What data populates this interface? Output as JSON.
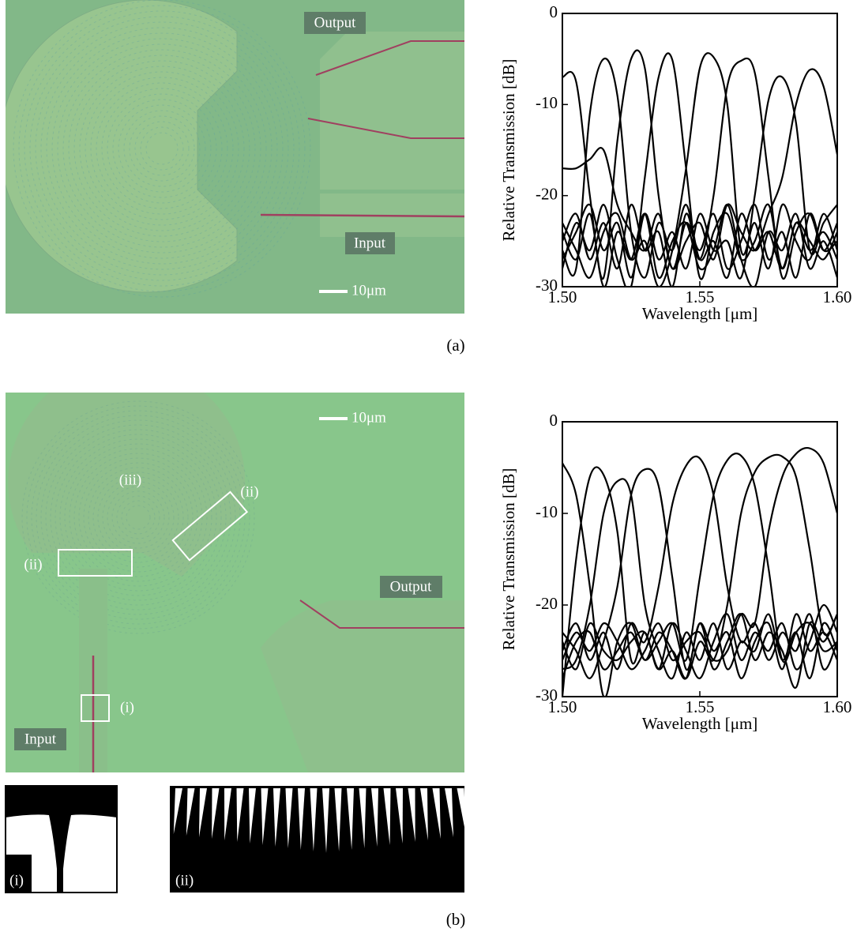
{
  "panel_a": {
    "caption": "(a)",
    "output_label": "Output",
    "input_label": "Input",
    "scale_bar": "10μm"
  },
  "panel_b": {
    "caption": "(b)",
    "output_label": "Output",
    "input_label": "Input",
    "scale_bar": "10μm",
    "region_labels": [
      "(iii)",
      "(ii)",
      "(ii)",
      "(i)"
    ],
    "inset_labels": [
      "(i)",
      "(ii)"
    ]
  },
  "chart_data": [
    {
      "type": "line",
      "xlabel": "Wavelength [μm]",
      "ylabel": "Relative Transmission [dB]",
      "x": [
        1.5,
        1.505,
        1.51,
        1.515,
        1.52,
        1.525,
        1.53,
        1.535,
        1.54,
        1.545,
        1.55,
        1.555,
        1.56,
        1.565,
        1.57,
        1.575,
        1.58,
        1.585,
        1.59,
        1.595,
        1.6
      ],
      "xlim": [
        1.5,
        1.6
      ],
      "ylim": [
        -30,
        0
      ],
      "xticks": [
        {
          "value": 1.5,
          "label": "1.50"
        },
        1.55,
        {
          "value": 1.6,
          "label": "1.60"
        }
      ],
      "yticks": [
        0,
        -10,
        -20,
        -30
      ],
      "series": [
        {
          "color": "#000000",
          "values": [
            -7,
            -7.5,
            -20,
            -30,
            -24,
            -27,
            -22,
            -29,
            -25,
            -23,
            -28,
            -26,
            -21,
            -27,
            -30,
            -24,
            -26,
            -22,
            -28,
            -25,
            -29
          ]
        },
        {
          "color": "#000000",
          "values": [
            -26,
            -28,
            -11,
            -5,
            -9,
            -24,
            -29,
            -23,
            -26,
            -21,
            -27,
            -25,
            -29,
            -22,
            -26,
            -24,
            -28,
            -23,
            -25,
            -27,
            -24
          ]
        },
        {
          "color": "#000000",
          "values": [
            -24,
            -27,
            -22,
            -29,
            -14,
            -5,
            -6,
            -20,
            -28,
            -23,
            -26,
            -22,
            -28,
            -25,
            -21,
            -27,
            -24,
            -29,
            -22,
            -26,
            -25
          ]
        },
        {
          "color": "#000000",
          "values": [
            -28,
            -23,
            -26,
            -21,
            -27,
            -30,
            -18,
            -7,
            -5.1,
            -17,
            -29,
            -24,
            -22,
            -27,
            -25,
            -21,
            -28,
            -23,
            -26,
            -24,
            -27
          ]
        },
        {
          "color": "#000000",
          "values": [
            -23,
            -26,
            -29,
            -24,
            -22,
            -27,
            -25,
            -30,
            -26,
            -17,
            -6,
            -4.8,
            -10,
            -26,
            -23,
            -28,
            -21,
            -25,
            -27,
            -22,
            -26
          ]
        },
        {
          "color": "#000000",
          "values": [
            -25,
            -22,
            -27,
            -23,
            -28,
            -21,
            -26,
            -24,
            -30,
            -22,
            -27,
            -20,
            -8,
            -5.2,
            -6.5,
            -18,
            -29,
            -24,
            -22,
            -26,
            -23
          ]
        },
        {
          "color": "#000000",
          "values": [
            -27,
            -24,
            -21,
            -26,
            -23,
            -29,
            -22,
            -27,
            -24,
            -28,
            -22,
            -26,
            -25,
            -29,
            -20,
            -9.5,
            -7,
            -12,
            -26,
            -23,
            -21
          ]
        },
        {
          "color": "#000000",
          "values": [
            -17,
            -17,
            -16,
            -15,
            -21,
            -24,
            -26,
            -22,
            -28,
            -25,
            -23,
            -27,
            -21,
            -24,
            -26,
            -22,
            -18,
            -10,
            -6.2,
            -8,
            -15.5
          ]
        }
      ]
    },
    {
      "type": "line",
      "xlabel": "Wavelength [μm]",
      "ylabel": "Relative Transmission [dB]",
      "x": [
        1.5,
        1.505,
        1.51,
        1.515,
        1.52,
        1.525,
        1.53,
        1.535,
        1.54,
        1.545,
        1.55,
        1.555,
        1.56,
        1.565,
        1.57,
        1.575,
        1.58,
        1.585,
        1.59,
        1.595,
        1.6
      ],
      "xlim": [
        1.5,
        1.6
      ],
      "ylim": [
        -30,
        0
      ],
      "xticks": [
        {
          "value": 1.5,
          "label": "1.50"
        },
        1.55,
        {
          "value": 1.6,
          "label": "1.60"
        }
      ],
      "yticks": [
        0,
        -10,
        -20,
        -30
      ],
      "series": [
        {
          "color": "#000000",
          "values": [
            -4.5,
            -8,
            -18,
            -30,
            -24,
            -22,
            -26,
            -23,
            -25,
            -28,
            -22,
            -27,
            -24,
            -21,
            -26,
            -23,
            -25,
            -29,
            -22,
            -24,
            -21
          ]
        },
        {
          "color": "#000000",
          "values": [
            -30,
            -15,
            -6,
            -5.8,
            -12,
            -26,
            -23,
            -27,
            -22,
            -25,
            -28,
            -24,
            -21,
            -26,
            -23,
            -25,
            -22,
            -27,
            -24,
            -20,
            -23
          ]
        },
        {
          "color": "#000000",
          "values": [
            -27,
            -26,
            -20,
            -10,
            -6.5,
            -8,
            -20,
            -25,
            -28,
            -23,
            -26,
            -22,
            -27,
            -24,
            -25,
            -21,
            -26,
            -23,
            -28,
            -22,
            -25
          ]
        },
        {
          "color": "#000000",
          "values": [
            -23,
            -25,
            -28,
            -24,
            -18,
            -8,
            -5.2,
            -7,
            -17,
            -27,
            -22,
            -25,
            -23,
            -28,
            -24,
            -22,
            -27,
            -21,
            -25,
            -23,
            -26
          ]
        },
        {
          "color": "#000000",
          "values": [
            -25,
            -22,
            -26,
            -23,
            -27,
            -22,
            -24,
            -18,
            -9,
            -4.8,
            -4,
            -8,
            -18,
            -24,
            -22,
            -26,
            -23,
            -25,
            -21,
            -27,
            -24
          ]
        },
        {
          "color": "#000000",
          "values": [
            -28,
            -24,
            -23,
            -27,
            -25,
            -23,
            -26,
            -24,
            -22,
            -26,
            -17,
            -8,
            -4.2,
            -3.7,
            -7,
            -16,
            -26,
            -23,
            -22,
            -25,
            -24
          ]
        },
        {
          "color": "#000000",
          "values": [
            -24,
            -27,
            -22,
            -25,
            -26,
            -24,
            -23,
            -27,
            -25,
            -28,
            -24,
            -26,
            -20,
            -10,
            -5.5,
            -3.9,
            -3.8,
            -6,
            -14,
            -23,
            -21
          ]
        },
        {
          "color": "#000000",
          "values": [
            -26,
            -23,
            -25,
            -22,
            -24,
            -27,
            -25,
            -22,
            -26,
            -24,
            -23,
            -26,
            -25,
            -21,
            -22,
            -12,
            -6,
            -3.5,
            -2.9,
            -4.5,
            -10
          ]
        }
      ]
    }
  ]
}
